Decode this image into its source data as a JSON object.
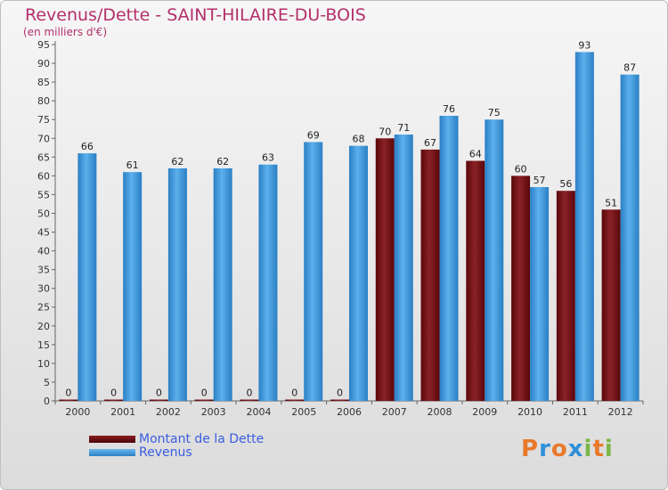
{
  "title": "Revenus/Dette - SAINT-HILAIRE-DU-BOIS",
  "subtitle": "(en milliers d'€)",
  "colors": {
    "dette": "#6e0f14",
    "revenus": "#3d97dc",
    "title": "#b4306a"
  },
  "legend": [
    {
      "label": "Montant de la Dette",
      "color": "#6e0f14"
    },
    {
      "label": "Revenus",
      "color": "#3d97dc"
    }
  ],
  "logo": {
    "letters": [
      "P",
      "r",
      "o",
      "x",
      "i",
      "t",
      "i"
    ],
    "colors": [
      "#e8792b",
      "#2f8fd8",
      "#e8792b",
      "#2f8fd8",
      "#7ab648",
      "#e8792b",
      "#7ab648"
    ]
  },
  "chart_data": {
    "type": "bar",
    "categories": [
      "2000",
      "2001",
      "2002",
      "2003",
      "2004",
      "2005",
      "2006",
      "2007",
      "2008",
      "2009",
      "2010",
      "2011",
      "2012"
    ],
    "series": [
      {
        "name": "Montant de la Dette",
        "values": [
          0,
          0,
          0,
          0,
          0,
          0,
          0,
          70,
          67,
          64,
          60,
          56,
          51
        ]
      },
      {
        "name": "Revenus",
        "values": [
          66,
          61,
          62,
          62,
          63,
          69,
          68,
          71,
          76,
          75,
          57,
          93,
          87
        ]
      }
    ],
    "ylim": [
      0,
      95
    ],
    "yticks": [
      0,
      5,
      10,
      15,
      20,
      25,
      30,
      35,
      40,
      45,
      50,
      55,
      60,
      65,
      70,
      75,
      80,
      85,
      90,
      95
    ],
    "grid": false,
    "legend_position": "bottom-left"
  }
}
